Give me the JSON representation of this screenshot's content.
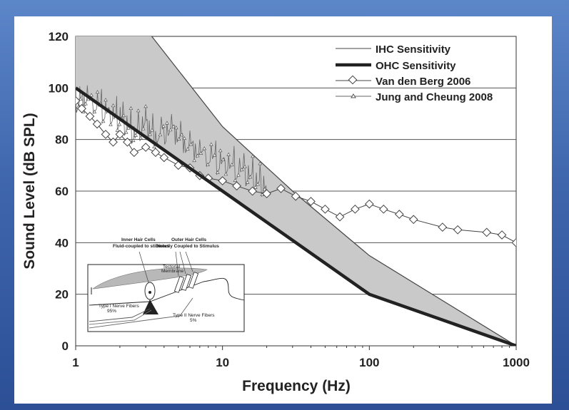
{
  "chart_data": {
    "type": "line",
    "xscale": "log",
    "xlim": [
      1,
      1000
    ],
    "ylim": [
      0,
      120
    ],
    "xticks": [
      "1",
      "10",
      "100",
      "1000"
    ],
    "yticks": [
      "0",
      "20",
      "40",
      "60",
      "80",
      "100",
      "120"
    ],
    "xlabel": "Frequency (Hz)",
    "ylabel": "Sound Level (dB SPL)",
    "grid": "horizontal",
    "legend": "top-right",
    "series": [
      {
        "name": "IHC Sensitivity",
        "color": "#444444",
        "x": [
          1,
          3.3,
          10,
          30,
          100,
          1000
        ],
        "y": [
          140,
          120,
          85,
          60,
          35,
          0
        ]
      },
      {
        "name": "OHC Sensitivity",
        "color": "#222222",
        "x": [
          1,
          10,
          100,
          1000
        ],
        "y": [
          100,
          60,
          20,
          0
        ]
      },
      {
        "name": "Van den Berg 2006",
        "color": "#444444",
        "x": [
          1,
          1.1,
          1.25,
          1.4,
          1.6,
          1.8,
          2.0,
          2.25,
          2.5,
          3.0,
          3.5,
          4.0,
          5.0,
          6.0,
          7.0,
          8.0,
          10,
          12.5,
          16,
          20,
          25,
          31.5,
          40,
          50,
          63,
          80,
          100,
          125,
          160,
          200,
          315,
          400,
          630,
          800,
          1000
        ],
        "y": [
          95,
          92,
          89,
          86,
          82,
          79,
          82,
          79,
          75,
          77,
          75,
          73,
          70,
          69,
          66,
          65,
          64,
          62,
          60,
          59,
          61,
          58,
          56,
          53,
          50,
          53,
          55,
          53,
          51,
          49,
          46,
          45,
          44,
          43,
          40
        ]
      },
      {
        "name": "Jung and Cheung 2008",
        "color": "#666666",
        "x": [
          1,
          1.2,
          1.5,
          1.8,
          2.1,
          2.5,
          3.0,
          3.5,
          4.5,
          5.5,
          7.0,
          9.0,
          11,
          14,
          17,
          20
        ],
        "y": [
          93,
          95,
          90,
          88,
          86,
          81,
          85,
          80,
          83,
          78,
          74,
          70,
          69,
          66,
          63,
          60
        ]
      }
    ],
    "inset": {
      "labels": {
        "ihc_title": "Inner Hair Cells",
        "ihc_subtitle": "Fluid-coupled to stimulus",
        "ohc_title": "Outer Hair Cells",
        "ohc_subtitle": "Directly Coupled to Stimulus",
        "tectorial_1": "Tectorial",
        "tectorial_2": "Membrane",
        "type1_1": "Type I  Nerve Fibers",
        "type1_2": "95%",
        "type2_1": "Type II  Nerve Fibers",
        "type2_2": "5%"
      }
    }
  }
}
